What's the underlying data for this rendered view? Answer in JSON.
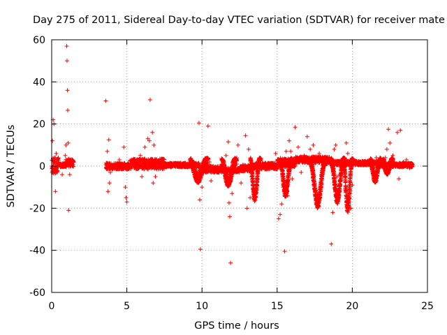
{
  "chart_data": {
    "type": "scatter",
    "title": "Day 275 of 2011, Sidereal Day-to-day VTEC variation (SDTVAR) for receiver mate",
    "xlabel": "GPS time / hours",
    "ylabel": "SDTVAR / TECUs",
    "xlim": [
      0,
      25
    ],
    "ylim": [
      -60,
      60
    ],
    "xticks": [
      0,
      5,
      10,
      15,
      20,
      25
    ],
    "yticks": [
      -60,
      -40,
      -20,
      0,
      20,
      40,
      60
    ],
    "xtick_labels": [
      "0",
      "5",
      "10",
      "15",
      "20",
      "25"
    ],
    "ytick_labels": [
      "-60",
      "-40",
      "-20",
      "0",
      "20",
      "40",
      "60"
    ],
    "grid": true,
    "marker": "+",
    "series_color": "#ff0000",
    "series": [
      {
        "name": "SDTVAR",
        "points": [
          [
            0.05,
            12
          ],
          [
            0.1,
            22
          ],
          [
            0.15,
            20
          ],
          [
            0.2,
            3
          ],
          [
            0.25,
            -12
          ],
          [
            0.3,
            6
          ],
          [
            0.35,
            -3
          ],
          [
            0.7,
            -4
          ],
          [
            0.8,
            1
          ],
          [
            0.9,
            5
          ],
          [
            0.95,
            10
          ],
          [
            1.0,
            57
          ],
          [
            1.02,
            50
          ],
          [
            1.05,
            36
          ],
          [
            1.07,
            26.5
          ],
          [
            1.1,
            11
          ],
          [
            1.12,
            -21
          ],
          [
            1.2,
            -4
          ],
          [
            1.3,
            3
          ],
          [
            1.4,
            2
          ],
          [
            3.6,
            31
          ],
          [
            3.7,
            7
          ],
          [
            3.75,
            -12
          ],
          [
            3.8,
            12.5
          ],
          [
            3.85,
            -8
          ],
          [
            3.9,
            -3
          ],
          [
            4.5,
            3
          ],
          [
            4.8,
            9
          ],
          [
            4.9,
            -10
          ],
          [
            4.95,
            -15
          ],
          [
            5.0,
            -17
          ],
          [
            5.9,
            5
          ],
          [
            6.0,
            -5
          ],
          [
            6.2,
            9
          ],
          [
            6.4,
            13
          ],
          [
            6.5,
            12
          ],
          [
            6.55,
            31.5
          ],
          [
            6.6,
            3
          ],
          [
            6.7,
            16
          ],
          [
            6.75,
            -8
          ],
          [
            6.8,
            10
          ],
          [
            6.9,
            -5
          ],
          [
            9.8,
            20.5
          ],
          [
            9.85,
            -16
          ],
          [
            9.9,
            -39.5
          ],
          [
            10.0,
            -10
          ],
          [
            10.3,
            2.5
          ],
          [
            10.4,
            19
          ],
          [
            10.5,
            2
          ],
          [
            10.6,
            -7
          ],
          [
            11.6,
            5
          ],
          [
            11.7,
            -4
          ],
          [
            11.75,
            11.5
          ],
          [
            11.8,
            -17.5
          ],
          [
            11.85,
            -24
          ],
          [
            11.9,
            -46
          ],
          [
            12.0,
            -13
          ],
          [
            12.2,
            0
          ],
          [
            12.4,
            10
          ],
          [
            12.6,
            -8
          ],
          [
            12.9,
            14.5
          ],
          [
            13.0,
            -20
          ],
          [
            13.1,
            8
          ],
          [
            13.2,
            -15
          ],
          [
            13.3,
            -5
          ],
          [
            14.9,
            6
          ],
          [
            15.1,
            -25
          ],
          [
            15.2,
            -23
          ],
          [
            15.3,
            -18
          ],
          [
            15.4,
            -10
          ],
          [
            15.5,
            -40.5
          ],
          [
            15.6,
            7
          ],
          [
            15.7,
            -14
          ],
          [
            15.8,
            12
          ],
          [
            15.9,
            7
          ],
          [
            16.0,
            -6
          ],
          [
            16.2,
            18.5
          ],
          [
            16.4,
            9
          ],
          [
            16.6,
            -3
          ],
          [
            16.8,
            5
          ],
          [
            17.0,
            14
          ],
          [
            17.2,
            8
          ],
          [
            17.4,
            10
          ],
          [
            17.6,
            4
          ],
          [
            17.8,
            6
          ],
          [
            18.6,
            -37
          ],
          [
            18.7,
            -22
          ],
          [
            18.8,
            8
          ],
          [
            18.9,
            10
          ],
          [
            19.0,
            -5
          ],
          [
            19.6,
            11
          ],
          [
            19.7,
            6
          ],
          [
            19.8,
            -15
          ],
          [
            19.9,
            -20
          ],
          [
            20.0,
            -9
          ],
          [
            21.2,
            3
          ],
          [
            21.6,
            4
          ],
          [
            22.2,
            4
          ],
          [
            22.3,
            8
          ],
          [
            22.4,
            17.5
          ],
          [
            22.5,
            11
          ],
          [
            22.7,
            5
          ],
          [
            22.8,
            2
          ],
          [
            23.0,
            16
          ],
          [
            23.1,
            -6
          ],
          [
            23.2,
            17
          ],
          [
            23.4,
            2
          ],
          [
            23.6,
            3
          ],
          [
            23.8,
            -1
          ],
          [
            24.0,
            1
          ]
        ],
        "bands": [
          {
            "x": [
              0.0,
              0.45
            ],
            "center": 0.5,
            "spread": 8
          },
          {
            "x": [
              0.5,
              0.95
            ],
            "center": 0.5,
            "spread": 2
          },
          {
            "x": [
              0.95,
              1.45
            ],
            "center": 1.5,
            "spread": 4
          },
          {
            "x": [
              3.6,
              5.2
            ],
            "center": 0.0,
            "spread": 3
          },
          {
            "x": [
              5.2,
              7.5
            ],
            "center": 1.0,
            "spread": 5
          },
          {
            "x": [
              7.5,
              9.8
            ],
            "center": 0.5,
            "spread": 2
          },
          {
            "x": [
              9.8,
              11.4
            ],
            "center": -1.5,
            "spread": 3
          },
          {
            "x": [
              11.4,
              12.5
            ],
            "center": -2.0,
            "spread": 2
          },
          {
            "x": [
              12.5,
              13.2
            ],
            "center": -1.0,
            "spread": 3
          },
          {
            "x": [
              13.2,
              15.0
            ],
            "center": 0.0,
            "spread": 3
          },
          {
            "x": [
              15.0,
              16.2
            ],
            "center": 1.5,
            "spread": 4
          },
          {
            "x": [
              16.2,
              18.5
            ],
            "center": 3.0,
            "spread": 3
          },
          {
            "x": [
              18.5,
              21.8
            ],
            "center": 1.5,
            "spread": 2
          },
          {
            "x": [
              21.8,
              24.0
            ],
            "center": 0.5,
            "spread": 2
          }
        ],
        "dips": [
          {
            "x": [
              9.2,
              10.4
            ],
            "min": -8
          },
          {
            "x": [
              11.3,
              12.3
            ],
            "min": -10
          },
          {
            "x": [
              13.2,
              13.9
            ],
            "min": -17
          },
          {
            "x": [
              15.2,
              16.0
            ],
            "min": -15
          },
          {
            "x": [
              17.2,
              18.3
            ],
            "min": -20
          },
          {
            "x": [
              18.6,
              19.5
            ],
            "min": -18
          },
          {
            "x": [
              19.4,
              20.05
            ],
            "min": -23
          },
          {
            "x": [
              21.2,
              21.9
            ],
            "min": -8
          },
          {
            "x": [
              22.0,
              22.7
            ],
            "min": -4
          }
        ]
      }
    ]
  }
}
